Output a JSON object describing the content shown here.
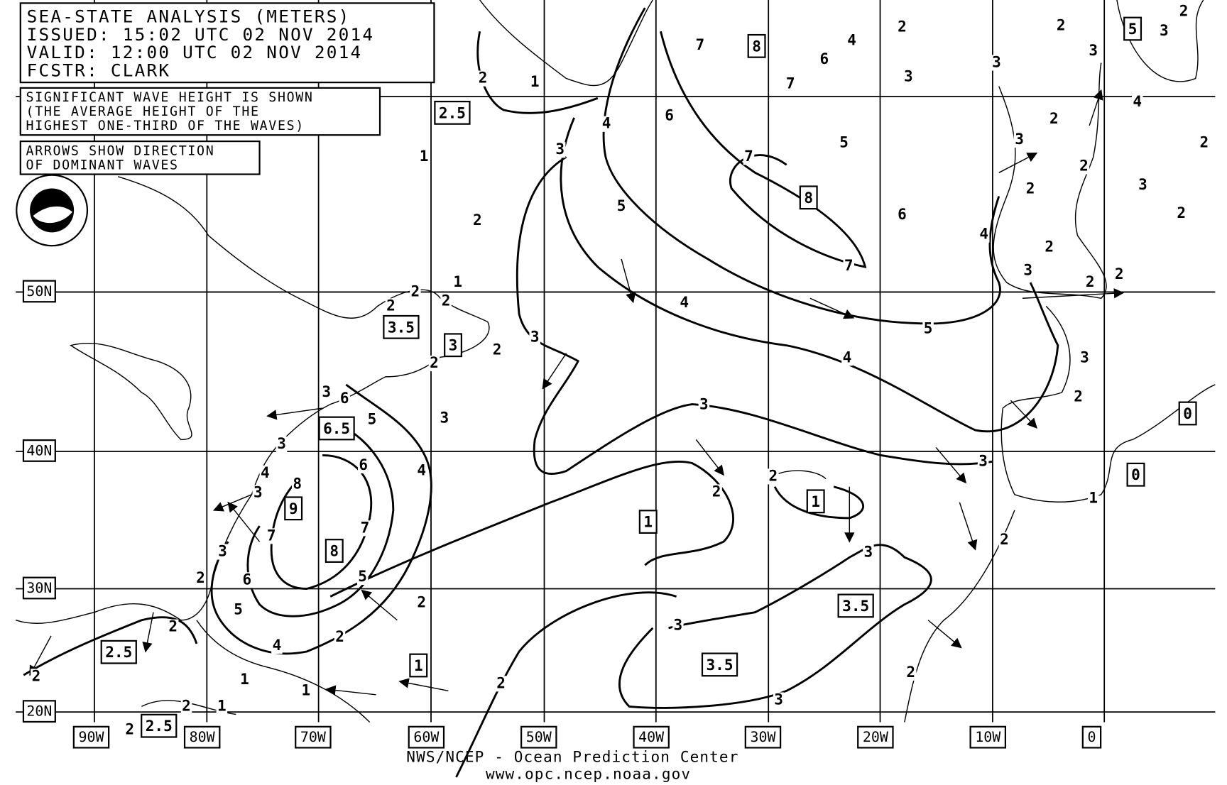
{
  "header": {
    "title": "SEA-STATE ANALYSIS (METERS)",
    "issued": "ISSUED:  15:02 UTC 02 NOV 2014",
    "valid": "VALID:   12:00 UTC 02 NOV 2014",
    "forecaster": "FCSTR:   CLARK"
  },
  "notes": [
    [
      "SIGNIFICANT WAVE HEIGHT IS SHOWN",
      "(THE AVERAGE HEIGHT OF THE",
      "HIGHEST ONE-THIRD OF THE WAVES)"
    ],
    [
      "ARROWS SHOW DIRECTION",
      "OF DOMINANT WAVES"
    ]
  ],
  "latitude_labels": [
    "50N",
    "40N",
    "30N",
    "20N"
  ],
  "longitude_labels": [
    "90W",
    "80W",
    "70W",
    "60W",
    "50W",
    "40W",
    "30W",
    "20W",
    "10W",
    "0"
  ],
  "boxed_labels": [
    "2.5",
    "8",
    "8",
    "5",
    "3.5",
    "3",
    "6.5",
    "9",
    "8",
    "1",
    "1",
    "3.5",
    "3.5",
    "1",
    "2.5",
    "2.5",
    "0",
    "0"
  ],
  "contour_labels": [
    "2",
    "1",
    "2",
    "4",
    "3",
    "3",
    "2",
    "3",
    "2",
    "3",
    "7",
    "6",
    "7",
    "6",
    "4",
    "3",
    "5",
    "7",
    "5",
    "6",
    "7",
    "4",
    "5",
    "4",
    "1",
    "2",
    "3",
    "3",
    "3",
    "6",
    "5",
    "6",
    "4",
    "8",
    "7",
    "7",
    "3",
    "6",
    "5",
    "2",
    "5",
    "2",
    "4",
    "2",
    "1",
    "1",
    "2",
    "3",
    "3",
    "3",
    "2",
    "2",
    "3",
    "3",
    "2",
    "2",
    "2",
    "3",
    "2",
    "3",
    "2",
    "2",
    "4",
    "2",
    "3",
    "2",
    "2",
    "2",
    "2",
    "2",
    "2",
    "1",
    "4",
    "1",
    "2",
    "2",
    "4",
    "3",
    "3",
    "2",
    "1",
    "2",
    "2",
    "2",
    "2",
    "3"
  ],
  "footer": {
    "line1": "NWS/NCEP - Ocean Prediction Center",
    "line2": "www.opc.ncep.noaa.gov"
  }
}
